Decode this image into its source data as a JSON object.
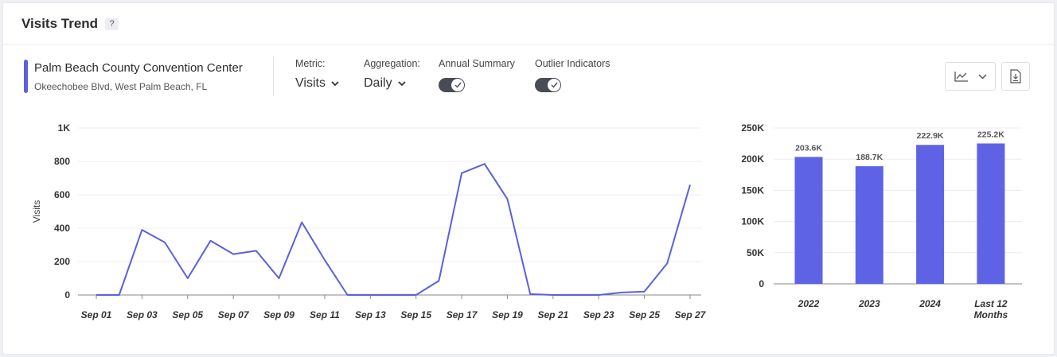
{
  "header": {
    "title": "Visits Trend",
    "help": "?"
  },
  "venue": {
    "name": "Palm Beach County Convention Center",
    "address": "Okeechobee Blvd, West Palm Beach, FL",
    "color": "#5b5fe0"
  },
  "controls": {
    "metric_label": "Metric:",
    "metric_value": "Visits",
    "aggregation_label": "Aggregation:",
    "aggregation_value": "Daily",
    "annual_summary_label": "Annual Summary",
    "annual_summary_on": true,
    "outlier_label": "Outlier Indicators",
    "outlier_on": true
  },
  "toolbar": {
    "chart_type_icon": "line-chart-icon",
    "download_icon": "download-icon"
  },
  "chart_data": [
    {
      "type": "line",
      "title": "",
      "xlabel": "",
      "ylabel": "Visits",
      "ylim": [
        0,
        1000
      ],
      "yticks": [
        0,
        200,
        400,
        600,
        800,
        1000
      ],
      "ytick_labels": [
        "0",
        "200",
        "400",
        "600",
        "800",
        "1K"
      ],
      "x": [
        "Sep 01",
        "Sep 02",
        "Sep 03",
        "Sep 04",
        "Sep 05",
        "Sep 06",
        "Sep 07",
        "Sep 08",
        "Sep 09",
        "Sep 10",
        "Sep 11",
        "Sep 12",
        "Sep 13",
        "Sep 14",
        "Sep 15",
        "Sep 16",
        "Sep 17",
        "Sep 18",
        "Sep 19",
        "Sep 20",
        "Sep 21",
        "Sep 22",
        "Sep 23",
        "Sep 24",
        "Sep 25",
        "Sep 26",
        "Sep 27"
      ],
      "xtick_labels": [
        "Sep 01",
        "Sep 03",
        "Sep 05",
        "Sep 07",
        "Sep 09",
        "Sep 11",
        "Sep 13",
        "Sep 15",
        "Sep 17",
        "Sep 19",
        "Sep 21",
        "Sep 23",
        "Sep 25",
        "Sep 27"
      ],
      "series": [
        {
          "name": "Palm Beach County Convention Center",
          "color": "#5b5fe0",
          "values": [
            0,
            0,
            390,
            315,
            100,
            325,
            245,
            265,
            100,
            435,
            210,
            0,
            0,
            0,
            0,
            85,
            730,
            785,
            575,
            5,
            0,
            0,
            0,
            15,
            20,
            190,
            660
          ]
        }
      ]
    },
    {
      "type": "bar",
      "title": "",
      "categories": [
        "2022",
        "2023",
        "2024",
        "Last 12 Months"
      ],
      "category_lines": [
        [
          "2022"
        ],
        [
          "2023"
        ],
        [
          "2024"
        ],
        [
          "Last 12",
          "Months"
        ]
      ],
      "values": [
        203600,
        188700,
        222900,
        225200
      ],
      "data_labels": [
        "203.6K",
        "188.7K",
        "222.9K",
        "225.2K"
      ],
      "ylim": [
        0,
        250000
      ],
      "yticks": [
        0,
        50000,
        100000,
        150000,
        200000,
        250000
      ],
      "ytick_labels": [
        "0",
        "50K",
        "100K",
        "150K",
        "200K",
        "250K"
      ],
      "color": "#5e63e6"
    }
  ]
}
